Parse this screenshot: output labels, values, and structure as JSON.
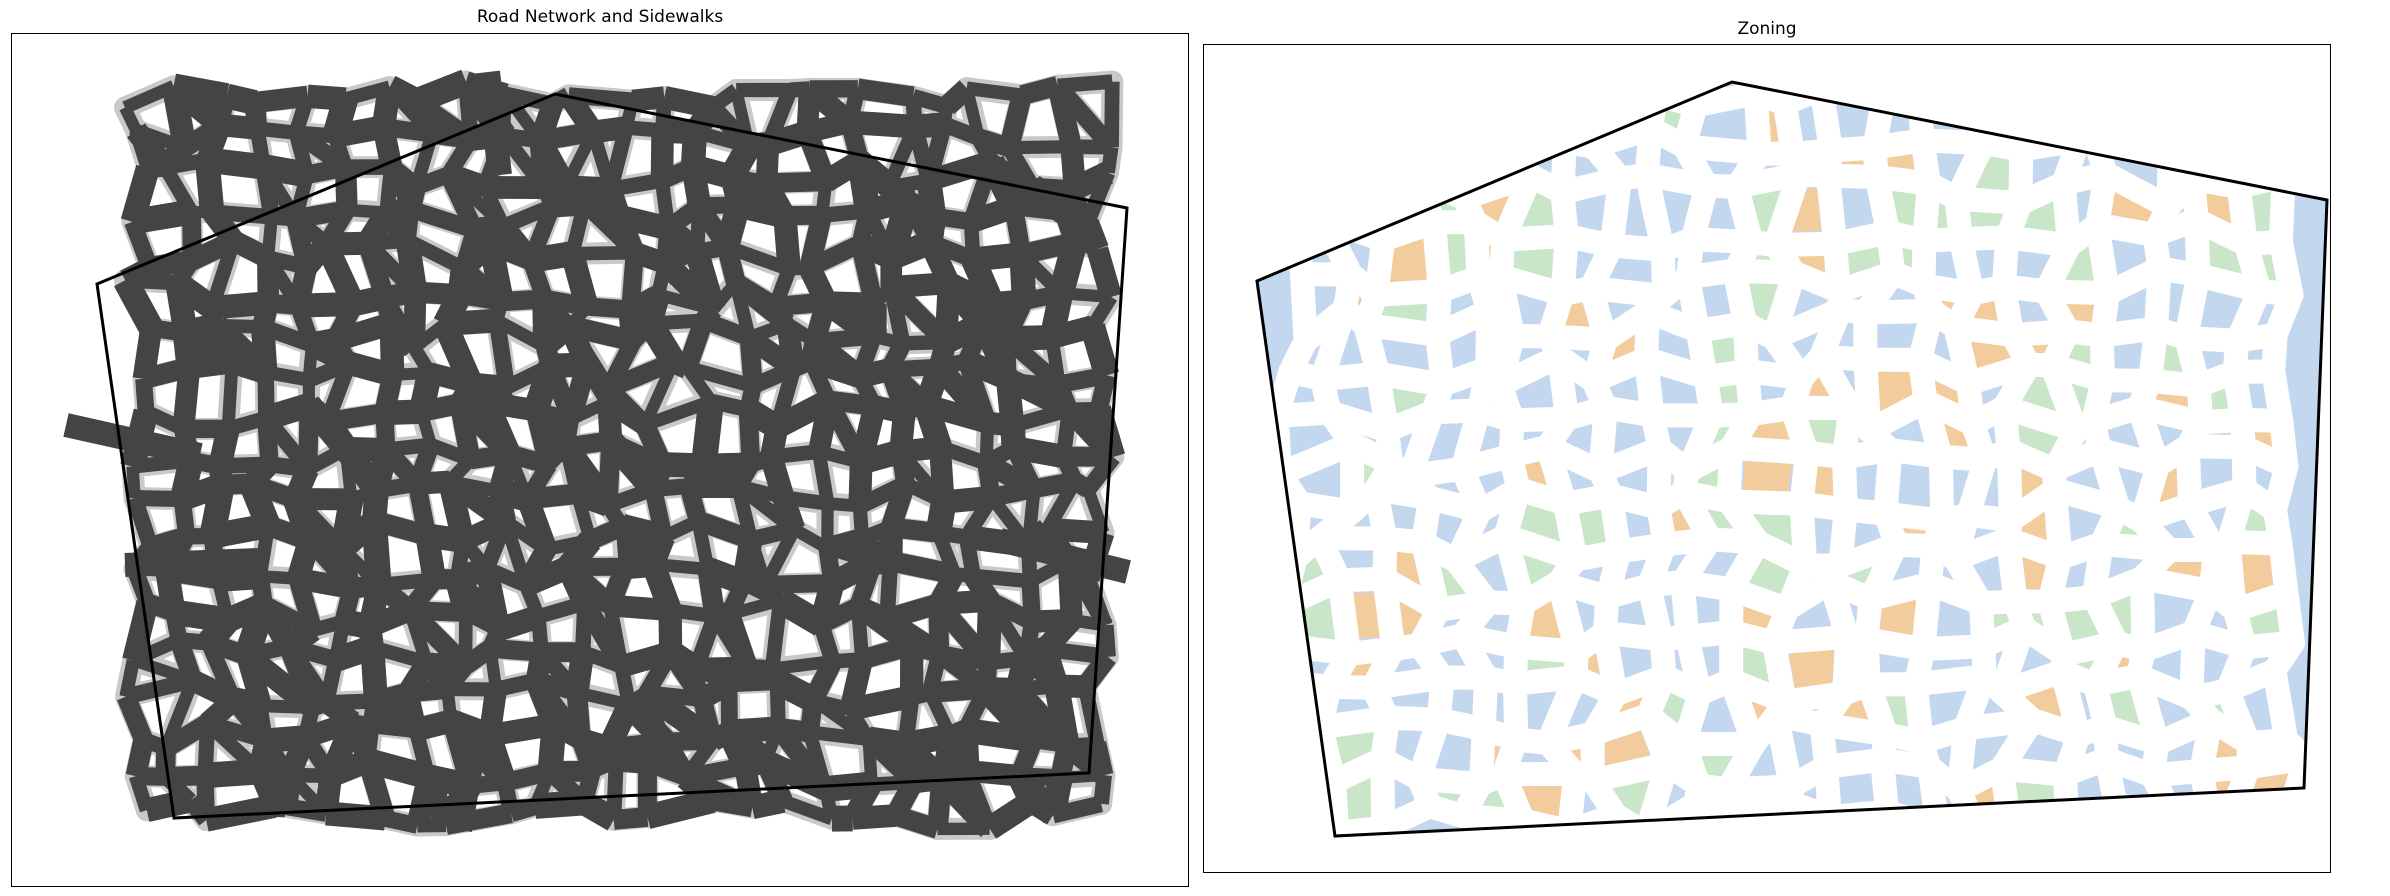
{
  "panels": {
    "left": {
      "title": "Road Network and Sidewalks"
    },
    "right": {
      "title": "Zoning"
    }
  },
  "colors": {
    "road": "#444444",
    "sidewalk": "#c9c9c9",
    "boundary": "#000000",
    "zone_residential": "#c3d7ef",
    "zone_commercial": "#f3cc9e",
    "zone_park": "#c9e6c9",
    "zone_gap": "#ffffff"
  }
}
